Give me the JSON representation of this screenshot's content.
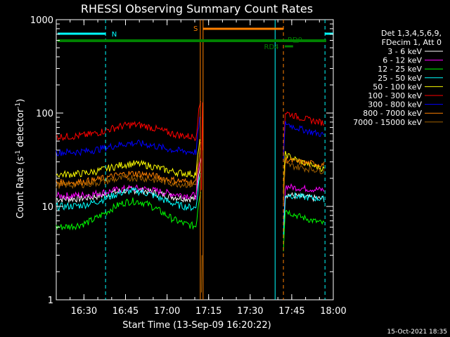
{
  "chart_data": {
    "type": "line",
    "title": "RHESSI Observing Summary Count Rates",
    "xlabel": "Start Time (13-Sep-09 16:20:22)",
    "ylabel_main": "Count Rate (s",
    "ylabel_sup1": "-1",
    "ylabel_mid": " detector",
    "ylabel_sup2": "-1",
    "ylabel_end": ")",
    "y_scale": "log",
    "ylim": [
      1,
      1000
    ],
    "xlim_minutes": [
      "16:20",
      "18:00"
    ],
    "x_ticks": [
      "16:30",
      "16:45",
      "17:00",
      "17:15",
      "17:30",
      "17:45",
      "18:00"
    ],
    "y_ticks": [
      "1",
      "10",
      "100",
      "1000"
    ],
    "legend": {
      "header1": "Det 1,3,4,5,6,9,",
      "header2": "FDecim 1, Att 0",
      "placement": "right"
    },
    "series": [
      {
        "name": "3 - 6 keV",
        "color": "#ffffff",
        "pre": [
          12,
          13,
          12
        ],
        "hump": 1.25,
        "post": [
          14,
          12
        ]
      },
      {
        "name": "6 - 12 keV",
        "color": "#ff00ff",
        "pre": [
          13,
          14,
          13
        ],
        "hump": 1.2,
        "post": [
          17,
          15
        ]
      },
      {
        "name": "12 - 25 keV",
        "color": "#00ff00",
        "pre": [
          6,
          7,
          6
        ],
        "hump": 1.9,
        "post": [
          10,
          6.5
        ]
      },
      {
        "name": "25 - 50 keV",
        "color": "#00ffff",
        "pre": [
          10,
          10,
          9.5
        ],
        "hump": 1.5,
        "post": [
          14,
          12
        ]
      },
      {
        "name": "50 - 100 keV",
        "color": "#ffff00",
        "pre": [
          22,
          23,
          22
        ],
        "hump": 1.3,
        "post": [
          40,
          25
        ]
      },
      {
        "name": "100 - 300 keV",
        "color": "#ff0000",
        "pre": [
          56,
          58,
          55
        ],
        "hump": 1.35,
        "post": [
          110,
          78
        ]
      },
      {
        "name": "300 - 800 keV",
        "color": "#0000ff",
        "pre": [
          38,
          40,
          38
        ],
        "hump": 1.25,
        "post": [
          85,
          58
        ]
      },
      {
        "name": "800 - 7000 keV",
        "color": "#ff8000",
        "pre": [
          18,
          19,
          18
        ],
        "hump": 1.25,
        "post": [
          33,
          28
        ]
      },
      {
        "name": "7000 - 15000 keV",
        "color": "#a06000",
        "pre": [
          17,
          18,
          17
        ],
        "hump": 1.2,
        "post": [
          30,
          24
        ]
      }
    ],
    "annotations": {
      "n_label": "N",
      "s_label": "S",
      "rd4_label": "RD4",
      "rd0_label": "RD0"
    }
  },
  "footer_timestamp": "15-Oct-2021 18:35"
}
